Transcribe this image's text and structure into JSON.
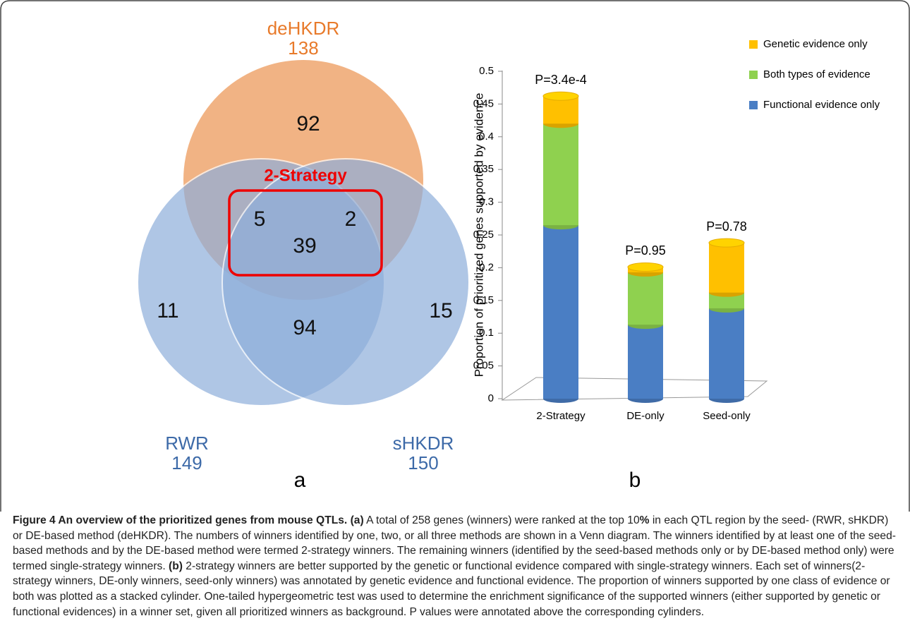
{
  "venn": {
    "sets": [
      {
        "name": "deHKDR",
        "total": "138"
      },
      {
        "name": "RWR",
        "total": "149"
      },
      {
        "name": "sHKDR",
        "total": "150"
      }
    ],
    "regions": {
      "deHKDR_only": "92",
      "RWR_deHKDR": "5",
      "sHKDR_deHKDR": "2",
      "all_three": "39",
      "RWR_only": "11",
      "RWR_sHKDR": "94",
      "sHKDR_only": "15"
    },
    "highlight": "2-Strategy",
    "panel_label": "a"
  },
  "chart_data": {
    "type": "bar",
    "stacked": true,
    "panel_label": "b",
    "y_label": "Proportion of prioritized genes supported by evidence",
    "categories": [
      "2-Strategy",
      "DE-only",
      "Seed-only"
    ],
    "series": [
      {
        "name": "Functional evidence only",
        "color": "#4a7ec4",
        "values": [
          0.265,
          0.113,
          0.138
        ]
      },
      {
        "name": "Both types of evidence",
        "color": "#8fd14f",
        "values": [
          0.155,
          0.08,
          0.024
        ]
      },
      {
        "name": "Genetic evidence only",
        "color": "#ffc000",
        "values": [
          0.042,
          0.008,
          0.076
        ]
      }
    ],
    "annotations": [
      "P=3.4e-4",
      "P=0.95",
      "P=0.78"
    ],
    "ylim": [
      0,
      0.5
    ],
    "yticks": [
      0,
      0.05,
      0.1,
      0.15,
      0.2,
      0.25,
      0.3,
      0.35,
      0.4,
      0.45,
      0.5
    ],
    "grid": false,
    "legend": "top-right"
  },
  "caption": {
    "title": "Figure 4 An overview of the prioritized genes from mouse QTLs.",
    "label_a": "(a)",
    "text_a1": "A total of 258 genes (winners) were ranked at the top 10",
    "percent": "%",
    "text_a2": "in each QTL region by the seed- (RWR, sHKDR) or DE-based method (deHKDR). The numbers of winners identified by one, two, or all three methods are shown in a Venn diagram. The winners identified by at least one of the seed-based methods and by the DE-based method were termed 2-strategy winners. The remaining winners (identified by the seed-based methods only or by DE-based method only) were termed single-strategy winners.",
    "label_b": "(b)",
    "text_b": "2-strategy winners are better supported by the genetic or functional evidence compared with single-strategy winners. Each set of winners(2-strategy winners, DE-only winners, seed-only winners) was annotated by genetic evidence and functional evidence. The proportion of winners supported by one class of evidence or both was plotted as a stacked cylinder. One-tailed hypergeometric test was used to determine the enrichment significance of the supported winners (either supported by genetic or functional evidences) in a winner set, given all prioritized winners as background. P values were annotated above the corresponding cylinders."
  }
}
